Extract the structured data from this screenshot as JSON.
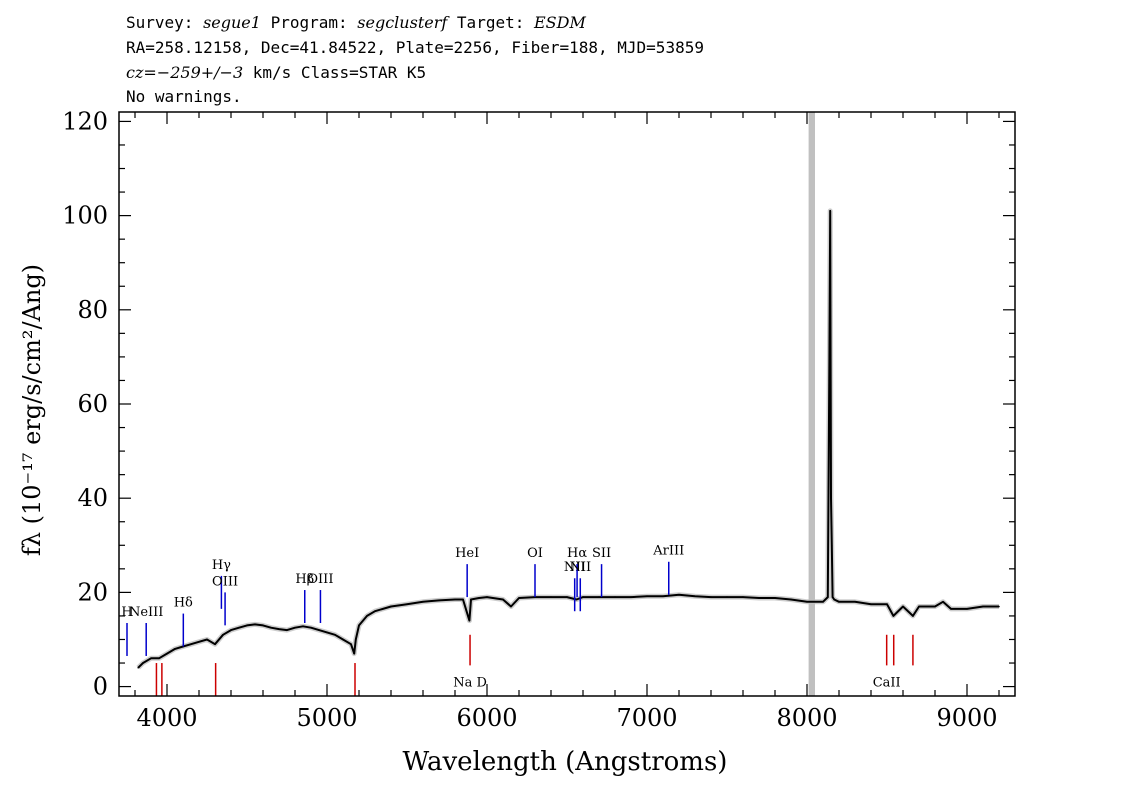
{
  "header": {
    "survey_label": "Survey:",
    "survey": "segue1",
    "program_label": "Program:",
    "program": "segclusterf",
    "target_label": "Target:",
    "target": "ESDM",
    "line2": "RA=258.12158, Dec=41.84522, Plate=2256, Fiber=188, MJD=53859",
    "cz_label": "cz=",
    "cz_value": "−259+/−3",
    "cz_rest": "km/s Class=STAR K5",
    "line4": "No warnings."
  },
  "chart_data": {
    "type": "line",
    "xlabel": "Wavelength (Angstroms)",
    "ylabel": "fλ (10⁻¹⁷ erg/s/cm²/Ang)",
    "xlim": [
      3700,
      9300
    ],
    "ylim": [
      -2,
      122
    ],
    "x_ticks": [
      4000,
      5000,
      6000,
      7000,
      8000,
      9000
    ],
    "y_ticks": [
      0,
      20,
      40,
      60,
      80,
      100,
      120
    ],
    "grid": false,
    "series": [
      {
        "color": "#000000",
        "x": [
          3820,
          3850,
          3900,
          3950,
          4000,
          4050,
          4100,
          4150,
          4200,
          4250,
          4300,
          4350,
          4400,
          4450,
          4500,
          4550,
          4600,
          4650,
          4700,
          4750,
          4800,
          4850,
          4900,
          4950,
          5000,
          5050,
          5100,
          5150,
          5170,
          5180,
          5200,
          5250,
          5300,
          5400,
          5500,
          5600,
          5700,
          5800,
          5850,
          5890,
          5900,
          5950,
          6000,
          6100,
          6150,
          6200,
          6300,
          6400,
          6500,
          6560,
          6600,
          6700,
          6800,
          6900,
          7000,
          7100,
          7200,
          7300,
          7400,
          7500,
          7600,
          7700,
          7800,
          7900,
          8000,
          8100,
          8130,
          8140,
          8145,
          8150,
          8155,
          8160,
          8170,
          8200,
          8300,
          8400,
          8500,
          8540,
          8600,
          8662,
          8700,
          8800,
          8850,
          8900,
          9000,
          9100,
          9200
        ],
        "y": [
          4,
          5,
          6,
          6,
          7,
          8,
          8.5,
          9,
          9.5,
          10,
          9,
          11,
          12,
          12.5,
          13,
          13.2,
          13,
          12.5,
          12.2,
          12,
          12.5,
          12.8,
          12.5,
          12,
          11.5,
          11,
          10,
          9,
          7,
          10,
          13,
          15,
          16,
          17,
          17.5,
          18,
          18.3,
          18.5,
          18.5,
          14,
          18.5,
          18.8,
          19,
          18.5,
          17,
          18.8,
          19,
          19,
          19,
          18.5,
          19,
          19,
          19,
          19,
          19.2,
          19.2,
          19.5,
          19.2,
          19,
          19,
          19,
          18.8,
          18.8,
          18.5,
          18,
          18,
          19,
          70,
          101,
          40,
          30,
          19,
          18.5,
          18,
          18,
          17.5,
          17.5,
          15,
          17,
          15,
          17,
          17,
          18,
          16.5,
          16.5,
          17,
          17
        ]
      }
    ],
    "masked_band": [
      8010,
      8050
    ],
    "emission_lines": [
      {
        "label": "H",
        "x": 3750,
        "label_y": 15
      },
      {
        "label": "NeIII",
        "x": 3870,
        "label_y": 15
      },
      {
        "label": "Hδ",
        "x": 4102,
        "label_y": 17
      },
      {
        "label": "Hγ",
        "x": 4340,
        "label_y": 25
      },
      {
        "label": "OIII",
        "x": 4363,
        "label_y": 21.5
      },
      {
        "label": "Hβ",
        "x": 4861,
        "label_y": 22
      },
      {
        "label": "OIII",
        "x": 4959,
        "label_y": 22
      },
      {
        "label": "HeI",
        "x": 5876,
        "label_y": 27.5
      },
      {
        "label": "OI",
        "x": 6300,
        "label_y": 27.5
      },
      {
        "label": "NII",
        "x": 6548,
        "label_y": 24.5
      },
      {
        "label": "Hα",
        "x": 6563,
        "label_y": 27.5
      },
      {
        "label": "NII",
        "x": 6583,
        "label_y": 24.5
      },
      {
        "label": "SII",
        "x": 6716,
        "label_y": 27.5
      },
      {
        "label": "ArIII",
        "x": 7136,
        "label_y": 28
      }
    ],
    "absorption_lines": [
      {
        "label": "",
        "x": 3934
      },
      {
        "label": "",
        "x": 3968
      },
      {
        "label": "",
        "x": 4304
      },
      {
        "label": "",
        "x": 5175
      },
      {
        "label": "Na D",
        "x": 5894
      },
      {
        "label": "CaII",
        "x": 8498
      },
      {
        "label": "",
        "x": 8542
      },
      {
        "label": "",
        "x": 8662
      }
    ],
    "colors": {
      "spectrum": "#000000",
      "error": "#c0c0c0",
      "emission": "#0000cc",
      "absorption": "#cc0000",
      "mask": "#c0c0c0"
    }
  }
}
